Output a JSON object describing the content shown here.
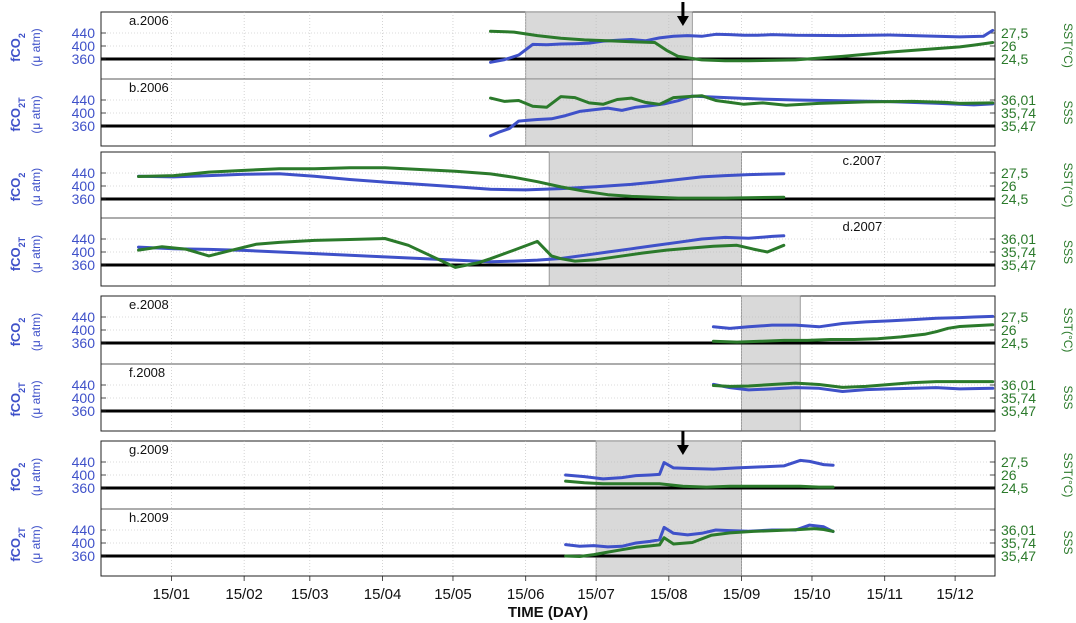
{
  "colors": {
    "fco2": "#3f51c9",
    "green": "#2b7a2b",
    "shade": "#d9d9d9",
    "grid": "#b8b8b8"
  },
  "axis": {
    "xlabel": "TIME (DAY)",
    "xticks": [
      "15/01",
      "15/02",
      "15/03",
      "15/04",
      "15/05",
      "15/06",
      "15/07",
      "15/08",
      "15/09",
      "15/10",
      "15/11",
      "15/12"
    ]
  },
  "chart_data": [
    {
      "type": "line",
      "panel": "a.2006",
      "left_label": [
        "fCO",
        "2",
        "(μ atm)"
      ],
      "right_label": "SST(°C)",
      "left_ticks": [
        "440",
        "400",
        "360"
      ],
      "right_ticks": [
        "27,5",
        "26",
        "24,5"
      ],
      "ylim_left": [
        340,
        460
      ],
      "ylim_right": [
        23.6,
        28.4
      ],
      "shade": [
        "15/06",
        "15/08 +10d"
      ],
      "arrow": "15/08 +6d",
      "series": [
        {
          "color": "fco2",
          "x": [
            150,
            156,
            162,
            168,
            174,
            180,
            186,
            192,
            198,
            204,
            210,
            216,
            222,
            228,
            234,
            240,
            246,
            252,
            258,
            264,
            270,
            280,
            300,
            320,
            340,
            350,
            360,
            364
          ],
          "values": [
            350,
            358,
            372,
            405,
            404,
            406,
            407,
            409,
            415,
            418,
            420,
            416,
            425,
            430,
            432,
            430,
            436,
            435,
            433,
            433,
            435,
            433,
            432,
            434,
            430,
            428,
            430,
            448
          ]
        },
        {
          "color": "green",
          "x": [
            150,
            160,
            170,
            180,
            190,
            200,
            210,
            220,
            225,
            230,
            240,
            250,
            260,
            280,
            300,
            320,
            340,
            350,
            356,
            364
          ],
          "values": [
            27.7,
            27.6,
            27.2,
            26.9,
            26.7,
            26.6,
            26.5,
            26.4,
            25.5,
            24.8,
            24.4,
            24.3,
            24.3,
            24.4,
            24.8,
            25.3,
            25.7,
            25.9,
            26.1,
            26.4
          ]
        }
      ]
    },
    {
      "type": "line",
      "panel": "b.2006",
      "left_label": [
        "fCO",
        "2T",
        "(μ atm)"
      ],
      "right_label": "SSS",
      "left_ticks": [
        "440",
        "400",
        "360"
      ],
      "right_ticks": [
        "36,01",
        "35,74",
        "35,47"
      ],
      "ylim_left": [
        320,
        470
      ],
      "ylim_right": [
        35.25,
        36.2
      ],
      "shade": [
        "15/06",
        "15/08 +10d"
      ],
      "series": [
        {
          "color": "fco2",
          "x": [
            150,
            154,
            158,
            162,
            166,
            170,
            176,
            182,
            188,
            194,
            200,
            206,
            212,
            218,
            224,
            230,
            236,
            242,
            248,
            258,
            268,
            280,
            300,
            320,
            340,
            356,
            364
          ],
          "values": [
            330,
            342,
            352,
            375,
            378,
            380,
            382,
            392,
            405,
            410,
            415,
            408,
            418,
            422,
            428,
            438,
            452,
            450,
            448,
            445,
            442,
            440,
            438,
            435,
            430,
            425,
            428
          ]
        },
        {
          "color": "green",
          "x": [
            150,
            156,
            162,
            168,
            174,
            180,
            186,
            192,
            198,
            204,
            210,
            216,
            222,
            228,
            234,
            240,
            246,
            252,
            258,
            266,
            276,
            290,
            310,
            330,
            344,
            350,
            364
          ],
          "values": [
            36.05,
            35.98,
            36.0,
            35.88,
            35.86,
            36.08,
            36.06,
            35.95,
            35.92,
            36.02,
            36.05,
            35.96,
            35.92,
            36.06,
            36.08,
            36.1,
            36.0,
            35.96,
            35.92,
            35.95,
            35.9,
            35.94,
            35.97,
            35.98,
            35.96,
            35.94,
            35.95
          ]
        }
      ]
    },
    {
      "type": "line",
      "panel": "c.2007",
      "left_label": [
        "fCO",
        "2",
        "(μ atm)"
      ],
      "right_label": "SST(°C)",
      "left_ticks": [
        "440",
        "400",
        "360"
      ],
      "right_ticks": [
        "27,5",
        "26",
        "24,5"
      ],
      "ylim_left": [
        340,
        460
      ],
      "ylim_right": [
        23.6,
        28.4
      ],
      "shade": [
        "15/06 +10d",
        "15/09"
      ],
      "series": [
        {
          "color": "fco2",
          "x": [
            0,
            15,
            30,
            45,
            60,
            75,
            90,
            105,
            120,
            135,
            150,
            165,
            180,
            195,
            210,
            220,
            230,
            240,
            250,
            260,
            275
          ],
          "values": [
            430,
            428,
            432,
            436,
            438,
            430,
            420,
            412,
            405,
            398,
            390,
            388,
            392,
            398,
            405,
            412,
            420,
            428,
            432,
            435,
            438
          ]
        },
        {
          "color": "green",
          "x": [
            0,
            15,
            30,
            45,
            60,
            75,
            90,
            105,
            120,
            135,
            150,
            160,
            170,
            180,
            190,
            200,
            210,
            220,
            230,
            240,
            250,
            260,
            275
          ],
          "values": [
            27.1,
            27.2,
            27.6,
            27.8,
            28.0,
            28.0,
            28.1,
            28.1,
            27.9,
            27.7,
            27.4,
            27.0,
            26.5,
            25.9,
            25.4,
            25.0,
            24.8,
            24.7,
            24.6,
            24.6,
            24.6,
            24.65,
            24.7
          ]
        }
      ]
    },
    {
      "type": "line",
      "panel": "d.2007",
      "left_label": [
        "fCO",
        "2T",
        "(μ atm)"
      ],
      "right_label": "SSS",
      "left_ticks": [
        "440",
        "400",
        "360"
      ],
      "right_ticks": [
        "36,01",
        "35,74",
        "35,47"
      ],
      "ylim_left": [
        320,
        470
      ],
      "ylim_right": [
        35.25,
        36.2
      ],
      "shade": [
        "15/06 +10d",
        "15/09"
      ],
      "series": [
        {
          "color": "fco2",
          "x": [
            0,
            15,
            30,
            45,
            60,
            75,
            90,
            105,
            120,
            135,
            150,
            160,
            170,
            180,
            190,
            200,
            210,
            220,
            230,
            240,
            250,
            260,
            270,
            275
          ],
          "values": [
            415,
            410,
            408,
            405,
            400,
            395,
            390,
            385,
            380,
            375,
            370,
            372,
            375,
            380,
            390,
            400,
            410,
            420,
            430,
            440,
            445,
            442,
            448,
            450
          ]
        },
        {
          "color": "green",
          "x": [
            0,
            10,
            20,
            30,
            40,
            50,
            60,
            75,
            90,
            105,
            115,
            125,
            135,
            145,
            150,
            160,
            170,
            176,
            180,
            186,
            195,
            205,
            215,
            225,
            235,
            245,
            255,
            262,
            268,
            275
          ],
          "values": [
            35.78,
            35.85,
            35.8,
            35.66,
            35.78,
            35.9,
            35.94,
            35.98,
            36.0,
            36.02,
            35.88,
            35.65,
            35.42,
            35.52,
            35.6,
            35.78,
            35.96,
            35.66,
            35.6,
            35.55,
            35.58,
            35.65,
            35.72,
            35.78,
            35.82,
            35.86,
            35.88,
            35.8,
            35.74,
            35.88
          ]
        }
      ]
    },
    {
      "type": "line",
      "panel": "e.2008",
      "left_label": [
        "fCO",
        "2",
        "(μ atm)"
      ],
      "right_label": "SST(°C)",
      "left_ticks": [
        "440",
        "400",
        "360"
      ],
      "right_ticks": [
        "27,5",
        "26",
        "24,5"
      ],
      "ylim_left": [
        340,
        460
      ],
      "ylim_right": [
        23.6,
        28.4
      ],
      "shade": [
        "15/09",
        "15/09 +25d"
      ],
      "series": [
        {
          "color": "fco2",
          "x": [
            245,
            252,
            260,
            270,
            280,
            290,
            300,
            310,
            320,
            330,
            340,
            350,
            356,
            364
          ],
          "values": [
            410,
            405,
            410,
            415,
            415,
            410,
            420,
            425,
            428,
            432,
            436,
            438,
            440,
            442
          ]
        },
        {
          "color": "green",
          "x": [
            245,
            255,
            265,
            275,
            285,
            295,
            305,
            315,
            325,
            335,
            340,
            345,
            350,
            356,
            364
          ],
          "values": [
            24.7,
            24.6,
            24.7,
            24.8,
            24.8,
            24.9,
            24.9,
            25.0,
            25.2,
            25.5,
            25.8,
            26.2,
            26.4,
            26.5,
            26.6
          ]
        }
      ]
    },
    {
      "type": "line",
      "panel": "f.2008",
      "left_label": [
        "fCO",
        "2T",
        "(μ atm)"
      ],
      "right_label": "SSS",
      "left_ticks": [
        "440",
        "400",
        "360"
      ],
      "right_ticks": [
        "36,01",
        "35,74",
        "35,47"
      ],
      "ylim_left": [
        320,
        470
      ],
      "ylim_right": [
        35.25,
        36.2
      ],
      "shade": [
        "15/09",
        "15/09 +25d"
      ],
      "series": [
        {
          "color": "fco2",
          "x": [
            245,
            252,
            260,
            270,
            280,
            290,
            300,
            310,
            320,
            330,
            340,
            350,
            364
          ],
          "values": [
            442,
            432,
            425,
            428,
            432,
            430,
            420,
            426,
            428,
            430,
            432,
            428,
            430
          ]
        },
        {
          "color": "green",
          "x": [
            245,
            252,
            260,
            270,
            280,
            290,
            300,
            310,
            320,
            330,
            340,
            350,
            364
          ],
          "values": [
            36.0,
            35.98,
            35.99,
            36.02,
            36.05,
            36.02,
            35.96,
            35.98,
            36.02,
            36.06,
            36.08,
            36.08,
            36.08
          ]
        }
      ]
    },
    {
      "type": "line",
      "panel": "g.2009",
      "left_label": [
        "fCO",
        "2",
        "(μ atm)"
      ],
      "right_label": "SST(°C)",
      "left_ticks": [
        "440",
        "400",
        "360"
      ],
      "right_ticks": [
        "27,5",
        "26",
        "24,5"
      ],
      "ylim_left": [
        340,
        460
      ],
      "ylim_right": [
        23.6,
        28.4
      ],
      "shade": [
        "15/07",
        "15/09"
      ],
      "arrow": "15/08 +6d",
      "series": [
        {
          "color": "fco2",
          "x": [
            182,
            190,
            198,
            206,
            212,
            218,
            222,
            224,
            228,
            235,
            245,
            255,
            265,
            275,
            282,
            286,
            292,
            296
          ],
          "values": [
            400,
            395,
            388,
            392,
            398,
            400,
            402,
            438,
            422,
            420,
            418,
            422,
            425,
            428,
            445,
            442,
            432,
            430
          ]
        },
        {
          "color": "green",
          "x": [
            182,
            190,
            198,
            206,
            214,
            222,
            232,
            242,
            252,
            262,
            272,
            282,
            290,
            296
          ],
          "values": [
            25.3,
            25.1,
            25.0,
            25.0,
            25.0,
            25.0,
            24.7,
            24.6,
            24.7,
            24.7,
            24.7,
            24.7,
            24.6,
            24.6
          ]
        }
      ]
    },
    {
      "type": "line",
      "panel": "h.2009",
      "left_label": [
        "fCO",
        "2T",
        "(μ atm)"
      ],
      "right_label": "SSS",
      "left_ticks": [
        "440",
        "400",
        "360"
      ],
      "right_ticks": [
        "36,01",
        "35,74",
        "35,47"
      ],
      "ylim_left": [
        320,
        470
      ],
      "ylim_right": [
        35.25,
        36.2
      ],
      "shade": [
        "15/07",
        "15/09"
      ],
      "series": [
        {
          "color": "fco2",
          "x": [
            182,
            188,
            194,
            200,
            206,
            212,
            218,
            222,
            224,
            228,
            234,
            240,
            246,
            252,
            260,
            270,
            280,
            286,
            292,
            296
          ],
          "values": [
            395,
            390,
            392,
            388,
            390,
            400,
            405,
            410,
            448,
            430,
            425,
            430,
            440,
            438,
            436,
            440,
            440,
            455,
            450,
            435
          ]
        },
        {
          "color": "green",
          "x": [
            182,
            188,
            194,
            200,
            206,
            212,
            218,
            222,
            224,
            228,
            236,
            244,
            252,
            262,
            272,
            282,
            288,
            292,
            296
          ],
          "values": [
            35.47,
            35.46,
            35.5,
            35.55,
            35.6,
            35.65,
            35.68,
            35.7,
            35.85,
            35.72,
            35.75,
            35.9,
            35.95,
            35.98,
            36.0,
            36.02,
            36.04,
            36.02,
            35.98
          ]
        }
      ]
    }
  ]
}
